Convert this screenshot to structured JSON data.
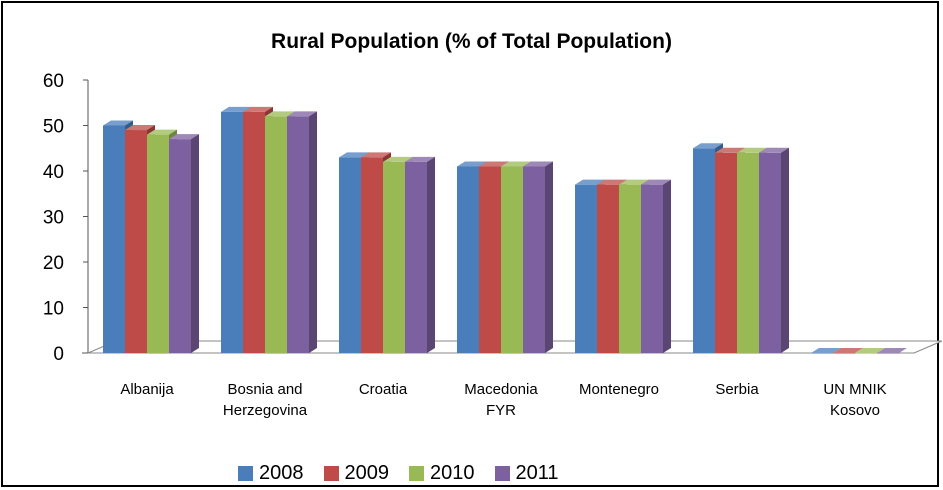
{
  "chart_data": {
    "type": "bar",
    "title": "Rural Population (% of Total Population)",
    "categories": [
      "Albanija",
      "Bosnia and Herzegovina",
      "Croatia",
      "Macedonia FYR",
      "Montenegro",
      "Serbia",
      "UN MNIK Kosovo"
    ],
    "category_lines": [
      [
        "Albanija"
      ],
      [
        "Bosnia and",
        "Herzegovina"
      ],
      [
        "Croatia"
      ],
      [
        "Macedonia",
        "FYR"
      ],
      [
        "Montenegro"
      ],
      [
        "Serbia"
      ],
      [
        "UN MNIK",
        "Kosovo"
      ]
    ],
    "series": [
      {
        "name": "2008",
        "color": "#4a7ebb",
        "values": [
          50,
          53,
          43,
          41,
          37,
          45,
          0
        ]
      },
      {
        "name": "2009",
        "color": "#be4b48",
        "values": [
          49,
          53,
          43,
          41,
          37,
          44,
          0
        ]
      },
      {
        "name": "2010",
        "color": "#98b954",
        "values": [
          48,
          52,
          42,
          41,
          37,
          44,
          0
        ]
      },
      {
        "name": "2011",
        "color": "#7d60a0",
        "values": [
          47,
          52,
          42,
          41,
          37,
          44,
          0
        ]
      }
    ],
    "ylim": [
      0,
      60
    ],
    "yticks": [
      0,
      10,
      20,
      30,
      40,
      50,
      60
    ],
    "grid": false,
    "legend_position": "bottom"
  }
}
